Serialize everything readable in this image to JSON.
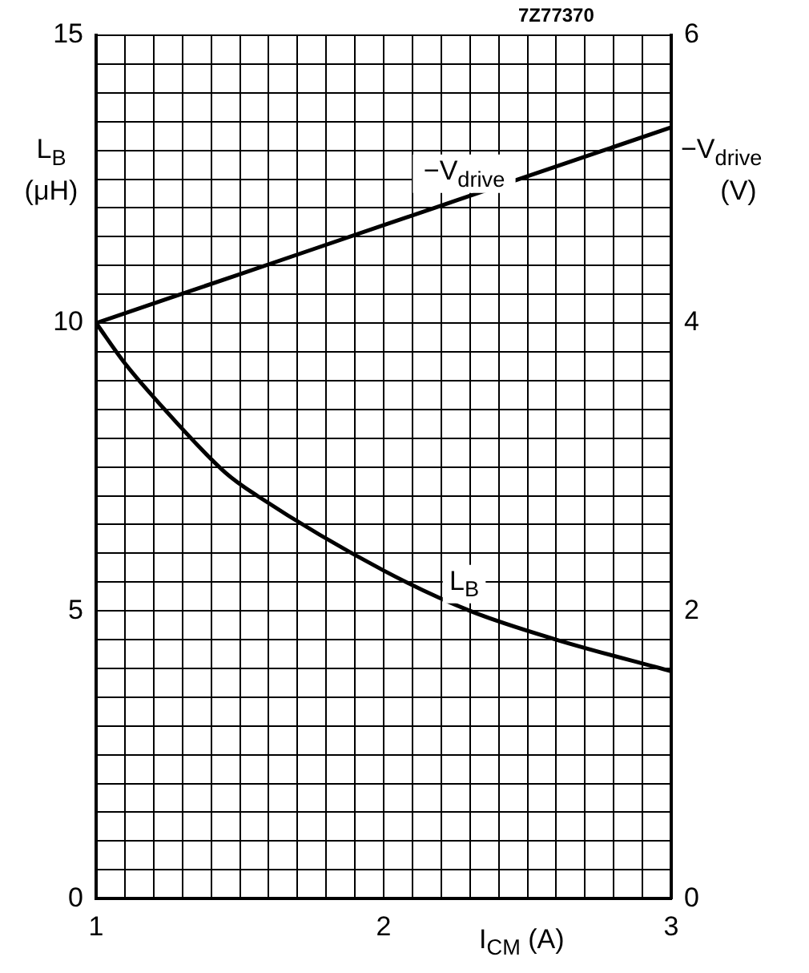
{
  "chart_data": {
    "type": "line",
    "xlabel": "I$_{CM}$ (A)",
    "ylabel": "L$_{B}$ (μH)",
    "y2label": "−V$_{drive}$ (V)",
    "annotations": [
      "7Z77370"
    ],
    "x": [
      1,
      1.1,
      1.22,
      1.45,
      1.56,
      2,
      2.3,
      2.6,
      3
    ],
    "series": [
      {
        "name": "−V$_{drive}$",
        "color": "#000000",
        "axis": "y2",
        "x": [
          1,
          1.5,
          2,
          2.5,
          3
        ],
        "values": [
          4.0,
          4.34,
          4.68,
          5.02,
          5.36
        ]
      },
      {
        "name": "L$_{B}$",
        "color": "#000000",
        "values": [
          10,
          9.3,
          8.6,
          7.4,
          7.0,
          5.7,
          5.0,
          4.5,
          3.95
        ]
      }
    ],
    "xlim": [
      1,
      3
    ],
    "ylim": [
      0,
      15
    ],
    "y2lim": [
      0,
      6
    ],
    "xticks": [
      1,
      {
        "value": 1.1,
        "label": null
      },
      {
        "value": 1.2,
        "label": null
      },
      {
        "value": 1.3,
        "label": null
      },
      {
        "value": 1.4,
        "label": null
      },
      {
        "value": 1.5,
        "label": null
      },
      {
        "value": 1.6,
        "label": null
      },
      {
        "value": 1.7,
        "label": null
      },
      {
        "value": 1.8,
        "label": null
      },
      {
        "value": 1.9,
        "label": null
      },
      2,
      {
        "value": 2.1,
        "label": null
      },
      {
        "value": 2.2,
        "label": null
      },
      {
        "value": 2.3,
        "label": null
      },
      {
        "value": 2.4,
        "label": null
      },
      {
        "value": 2.5,
        "label": null
      },
      {
        "value": 2.6,
        "label": null
      },
      {
        "value": 2.7,
        "label": null
      },
      {
        "value": 2.8,
        "label": null
      },
      {
        "value": 2.9,
        "label": null
      },
      3
    ],
    "yticks": [
      0,
      {
        "value": 0.5,
        "label": null
      },
      {
        "value": 1,
        "label": null
      },
      {
        "value": 1.5,
        "label": null
      },
      {
        "value": 2,
        "label": null
      },
      {
        "value": 2.5,
        "label": null
      },
      {
        "value": 3,
        "label": null
      },
      {
        "value": 3.5,
        "label": null
      },
      {
        "value": 4,
        "label": null
      },
      {
        "value": 4.5,
        "label": null
      },
      5,
      {
        "value": 5.5,
        "label": null
      },
      {
        "value": 6,
        "label": null
      },
      {
        "value": 6.5,
        "label": null
      },
      {
        "value": 7,
        "label": null
      },
      {
        "value": 7.5,
        "label": null
      },
      {
        "value": 8,
        "label": null
      },
      {
        "value": 8.5,
        "label": null
      },
      {
        "value": 9,
        "label": null
      },
      {
        "value": 9.5,
        "label": null
      },
      10,
      {
        "value": 10.5,
        "label": null
      },
      {
        "value": 11,
        "label": null
      },
      {
        "value": 11.5,
        "label": null
      },
      {
        "value": 12,
        "label": null
      },
      {
        "value": 12.5,
        "label": null
      },
      {
        "value": 13,
        "label": null
      },
      {
        "value": 13.5,
        "label": null
      },
      {
        "value": 14,
        "label": null
      },
      {
        "value": 14.5,
        "label": null
      },
      15
    ],
    "y2ticks": [
      0,
      2,
      4,
      6
    ],
    "grid": true,
    "legend": false,
    "marker": "none",
    "line_style": "solid"
  }
}
